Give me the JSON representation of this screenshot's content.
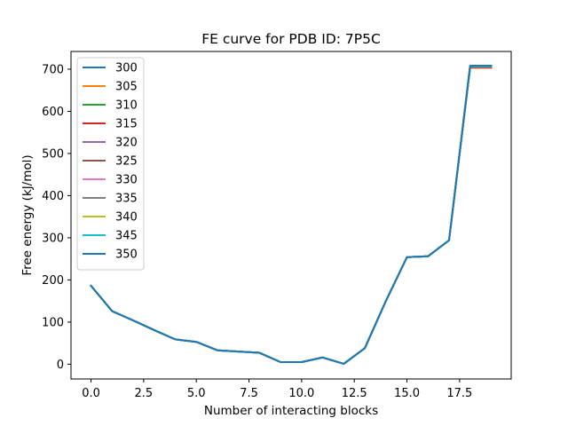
{
  "chart_data": {
    "type": "line",
    "title": "FE curve for PDB ID: 7P5C",
    "xlabel": "Number of interacting blocks",
    "ylabel": "Free energy (kJ/mol)",
    "xlim": [
      -0.95,
      19.95
    ],
    "ylim": [
      -35,
      742
    ],
    "xticks": [
      0.0,
      2.5,
      5.0,
      7.5,
      10.0,
      12.5,
      15.0,
      17.5
    ],
    "xtick_labels": [
      "0.0",
      "2.5",
      "5.0",
      "7.5",
      "10.0",
      "12.5",
      "15.0",
      "17.5"
    ],
    "yticks": [
      0,
      100,
      200,
      300,
      400,
      500,
      600,
      700
    ],
    "ytick_labels": [
      "0",
      "100",
      "200",
      "300",
      "400",
      "500",
      "600",
      "700"
    ],
    "grid": false,
    "legend_position": "upper-left",
    "x": [
      0,
      1,
      2,
      3,
      4,
      5,
      6,
      7,
      8,
      9,
      10,
      11,
      12,
      13,
      14,
      15,
      16,
      17,
      18,
      19
    ],
    "series": [
      {
        "name": "300",
        "color": "#1f77b4",
        "values": [
          186,
          126,
          104,
          81,
          59,
          53,
          33,
          30,
          27,
          5,
          5,
          16,
          1,
          38,
          150,
          254,
          256,
          294,
          708,
          708
        ]
      },
      {
        "name": "305",
        "color": "#ff7f0e",
        "values": [
          186,
          126,
          104,
          81,
          59,
          53,
          33,
          30,
          27,
          5,
          5,
          16,
          1,
          38,
          150,
          254,
          256,
          294,
          703,
          703
        ]
      },
      {
        "name": "310",
        "color": "#2ca02c",
        "values": [
          186,
          126,
          104,
          81,
          59,
          53,
          33,
          30,
          27,
          5,
          5,
          16,
          1,
          38,
          150,
          254,
          256,
          294,
          704,
          704
        ]
      },
      {
        "name": "315",
        "color": "#d62728",
        "values": [
          186,
          126,
          104,
          81,
          59,
          53,
          33,
          30,
          27,
          5,
          5,
          16,
          1,
          38,
          150,
          254,
          256,
          294,
          704,
          704
        ]
      },
      {
        "name": "320",
        "color": "#9467bd",
        "values": [
          186,
          126,
          104,
          81,
          59,
          53,
          33,
          30,
          27,
          5,
          5,
          16,
          1,
          38,
          150,
          254,
          256,
          294,
          705,
          705
        ]
      },
      {
        "name": "325",
        "color": "#8c564b",
        "values": [
          186,
          126,
          104,
          81,
          59,
          53,
          33,
          30,
          27,
          5,
          5,
          16,
          1,
          38,
          150,
          254,
          256,
          294,
          705,
          705
        ]
      },
      {
        "name": "330",
        "color": "#e377c2",
        "values": [
          186,
          126,
          104,
          81,
          59,
          53,
          33,
          30,
          27,
          5,
          5,
          16,
          1,
          38,
          150,
          254,
          256,
          294,
          706,
          706
        ]
      },
      {
        "name": "335",
        "color": "#7f7f7f",
        "values": [
          186,
          126,
          104,
          81,
          59,
          53,
          33,
          30,
          27,
          5,
          5,
          16,
          1,
          38,
          150,
          254,
          256,
          294,
          706,
          706
        ]
      },
      {
        "name": "340",
        "color": "#bcbd22",
        "values": [
          186,
          126,
          104,
          81,
          59,
          53,
          33,
          30,
          27,
          5,
          5,
          16,
          1,
          38,
          150,
          254,
          256,
          294,
          707,
          707
        ]
      },
      {
        "name": "345",
        "color": "#17becf",
        "values": [
          186,
          126,
          104,
          81,
          59,
          53,
          33,
          30,
          27,
          5,
          5,
          16,
          1,
          38,
          150,
          254,
          256,
          294,
          707,
          707
        ]
      },
      {
        "name": "350",
        "color": "#1f77b4",
        "values": [
          186,
          126,
          104,
          81,
          59,
          53,
          33,
          30,
          27,
          5,
          5,
          16,
          1,
          38,
          150,
          254,
          256,
          294,
          708,
          708
        ]
      }
    ]
  }
}
